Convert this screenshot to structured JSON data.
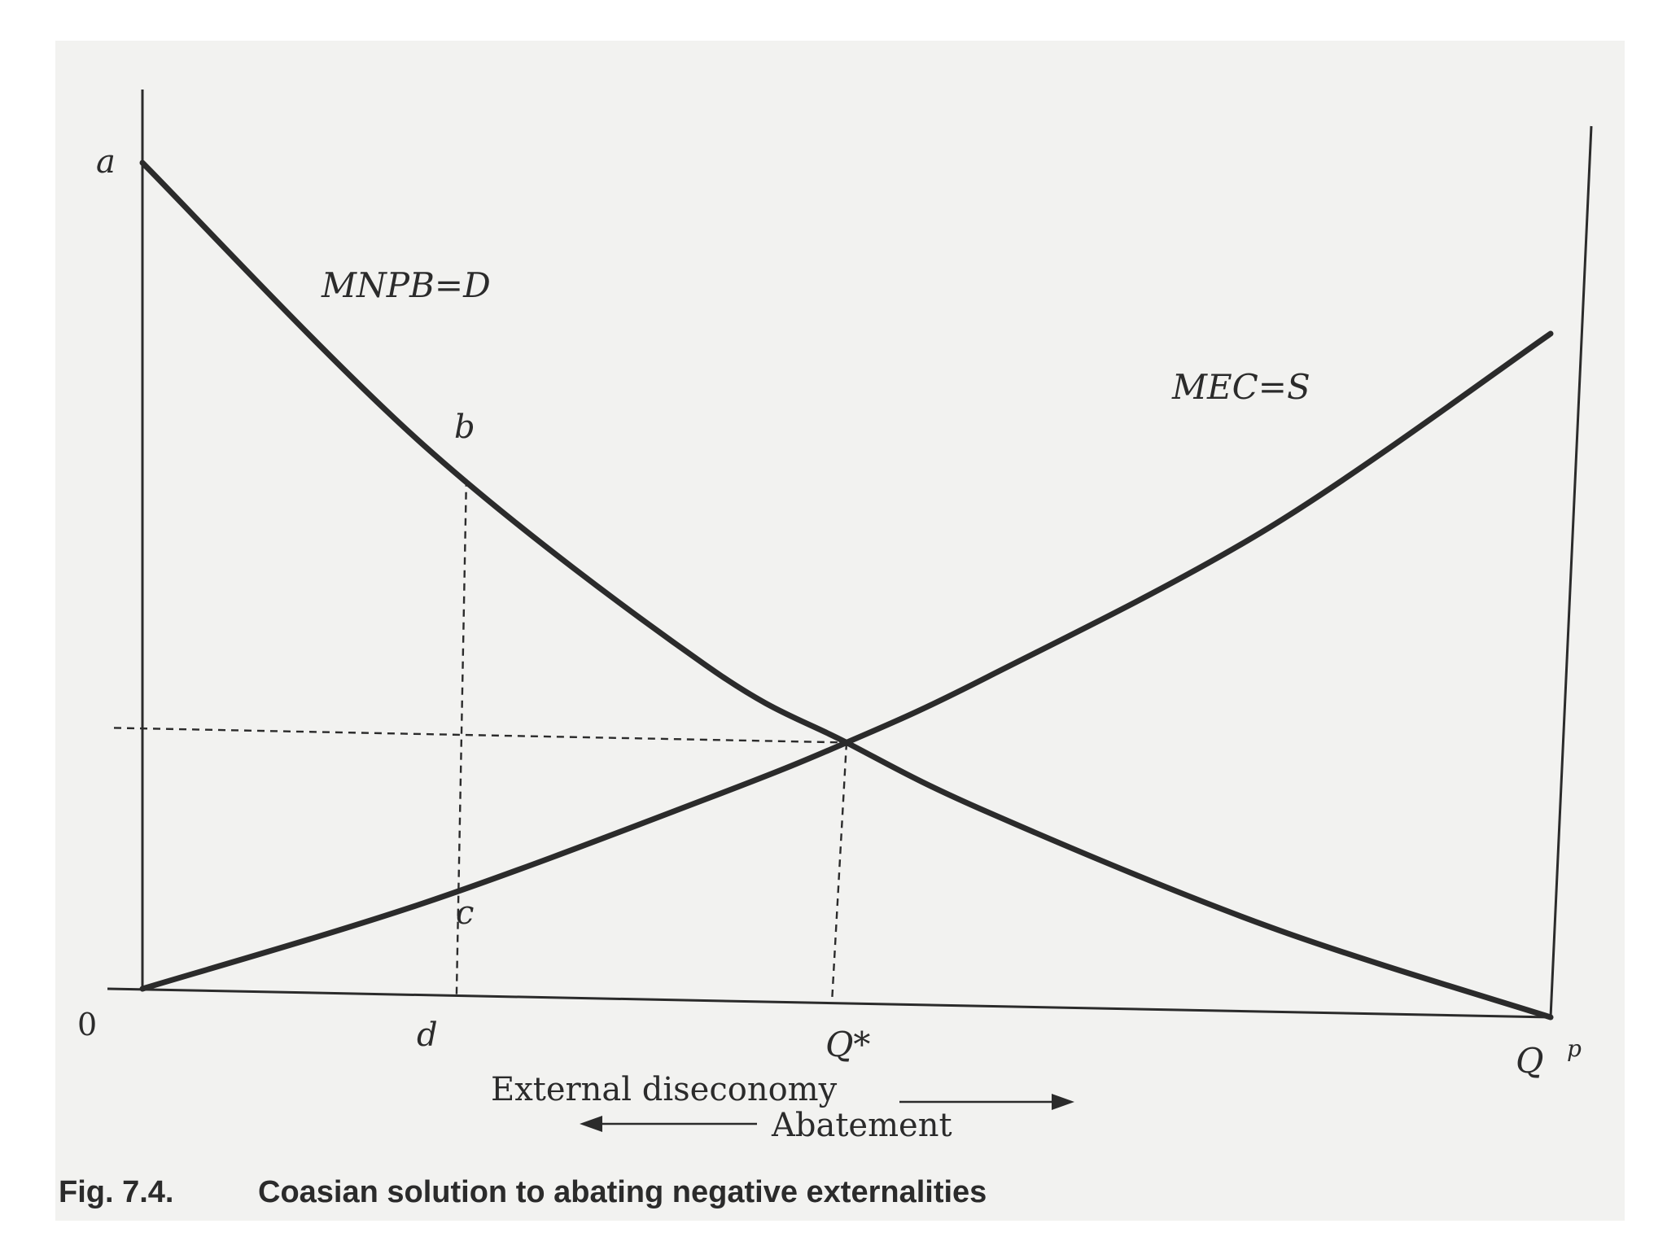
{
  "chart_data": {
    "type": "line",
    "title": "",
    "x_axis": {
      "ticks": [
        "0",
        "d",
        "Q*",
        "Q"
      ],
      "end_tick_superscript": "p",
      "label_increasing": "External diseconomy",
      "label_decreasing": "Abatement"
    },
    "y_axis": {
      "label": "",
      "ticks": [
        "a"
      ]
    },
    "xlim": [
      0,
      1
    ],
    "ylim": [
      0,
      1
    ],
    "series": [
      {
        "name": "MNPB=D",
        "points": [
          [
            0,
            1.0
          ],
          [
            0.2,
            0.66
          ],
          [
            0.4,
            0.4
          ],
          [
            0.5,
            0.31
          ],
          [
            0.6,
            0.23
          ],
          [
            0.8,
            0.1
          ],
          [
            1.0,
            0.0
          ]
        ]
      },
      {
        "name": "MEC=S",
        "points": [
          [
            0,
            0.0
          ],
          [
            0.2,
            0.11
          ],
          [
            0.4,
            0.24
          ],
          [
            0.5,
            0.31
          ],
          [
            0.6,
            0.39
          ],
          [
            0.8,
            0.57
          ],
          [
            1.0,
            0.8
          ]
        ]
      }
    ],
    "points": [
      {
        "label": "b",
        "x": 0.23,
        "y": 0.62
      },
      {
        "label": "c",
        "x": 0.23,
        "y": 0.12
      },
      {
        "label": "Q*",
        "x": 0.5,
        "y": 0.31
      }
    ],
    "guides": [
      "vertical d to b",
      "vertical Q* to intersection",
      "horizontal y-axis to intersection"
    ],
    "grid": false
  },
  "caption": {
    "number": "Fig. 7.4.",
    "text": "Coasian solution to abating negative externalities"
  },
  "colors": {
    "ink": "#2b2b2b",
    "paper": "#f2f2f0"
  }
}
